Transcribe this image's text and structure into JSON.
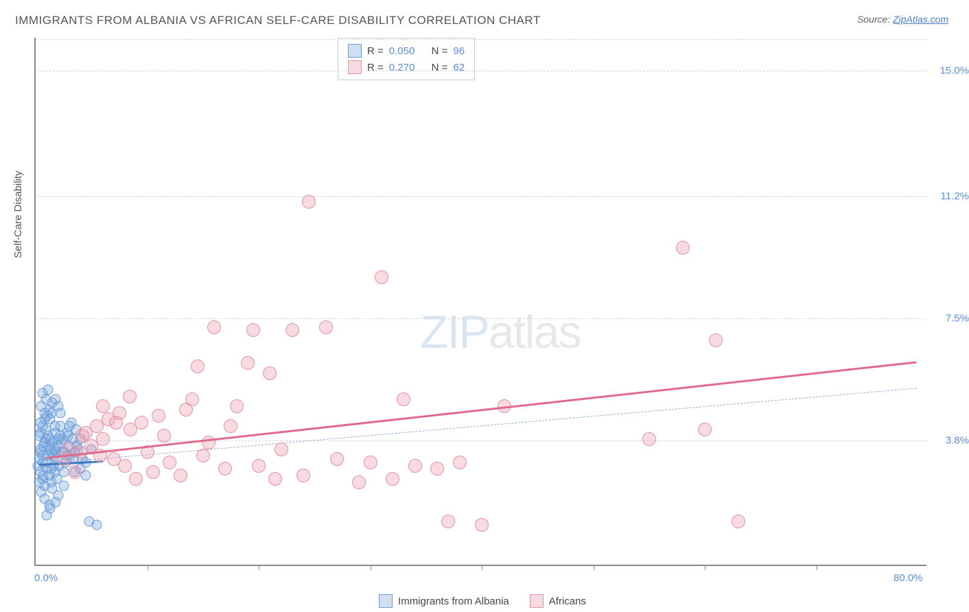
{
  "title": "IMMIGRANTS FROM ALBANIA VS AFRICAN SELF-CARE DISABILITY CORRELATION CHART",
  "source_label": "Source:",
  "source_name": "ZipAtlas.com",
  "ylabel": "Self-Care Disability",
  "watermark_a": "ZIP",
  "watermark_b": "atlas",
  "chart": {
    "type": "scatter",
    "xlim": [
      0,
      80
    ],
    "ylim": [
      0,
      16
    ],
    "background_color": "#ffffff",
    "grid_color": "#d8d8d8",
    "axis_color": "#888888",
    "tick_color": "#5b8dd6",
    "xticks": [
      {
        "pos": 0,
        "label": "0.0%"
      },
      {
        "pos": 80,
        "label": "80.0%"
      }
    ],
    "xtick_marks": [
      10,
      20,
      30,
      40,
      50,
      60,
      70
    ],
    "yticks": [
      {
        "pos": 3.8,
        "label": "3.8%"
      },
      {
        "pos": 7.5,
        "label": "7.5%"
      },
      {
        "pos": 11.2,
        "label": "11.2%"
      },
      {
        "pos": 15.0,
        "label": "15.0%"
      }
    ],
    "series": [
      {
        "id": "albania",
        "label": "Immigrants from Albania",
        "fill": "rgba(120,165,220,0.35)",
        "stroke": "#6a9ad8",
        "marker_size": 15,
        "R": "0.050",
        "N": "96",
        "trend": {
          "x1": 0.3,
          "y1": 3.1,
          "x2": 79,
          "y2": 5.4,
          "style": "dashed",
          "color": "#8db0dc"
        },
        "small_trend": {
          "x1": 0.3,
          "y1": 3.1,
          "x2": 6,
          "y2": 3.2,
          "style": "solid",
          "color": "#3d78c0"
        },
        "points": [
          [
            0.2,
            3.0
          ],
          [
            0.3,
            3.2
          ],
          [
            0.4,
            2.8
          ],
          [
            0.5,
            3.4
          ],
          [
            0.6,
            2.6
          ],
          [
            0.7,
            3.6
          ],
          [
            0.8,
            2.4
          ],
          [
            0.9,
            3.8
          ],
          [
            1.0,
            2.9
          ],
          [
            1.1,
            3.3
          ],
          [
            1.2,
            2.7
          ],
          [
            1.3,
            3.5
          ],
          [
            1.4,
            2.5
          ],
          [
            1.5,
            3.7
          ],
          [
            1.6,
            3.0
          ],
          [
            1.7,
            2.8
          ],
          [
            1.8,
            3.4
          ],
          [
            1.9,
            2.6
          ],
          [
            2.0,
            3.6
          ],
          [
            0.4,
            4.0
          ],
          [
            0.6,
            4.2
          ],
          [
            0.8,
            4.4
          ],
          [
            1.0,
            4.5
          ],
          [
            1.2,
            4.7
          ],
          [
            1.5,
            4.9
          ],
          [
            1.8,
            5.0
          ],
          [
            2.0,
            4.8
          ],
          [
            2.2,
            4.2
          ],
          [
            2.4,
            3.8
          ],
          [
            2.6,
            3.4
          ],
          [
            2.8,
            4.0
          ],
          [
            3.0,
            3.6
          ],
          [
            3.2,
            4.3
          ],
          [
            3.4,
            3.2
          ],
          [
            3.6,
            4.1
          ],
          [
            3.8,
            3.5
          ],
          [
            4.0,
            2.9
          ],
          [
            0.5,
            2.2
          ],
          [
            0.8,
            2.0
          ],
          [
            1.2,
            1.8
          ],
          [
            1.5,
            2.3
          ],
          [
            1.8,
            1.9
          ],
          [
            2.0,
            2.1
          ],
          [
            2.5,
            2.4
          ],
          [
            1.0,
            1.5
          ],
          [
            1.3,
            1.7
          ],
          [
            0.6,
            5.2
          ],
          [
            0.9,
            5.0
          ],
          [
            1.1,
            5.3
          ],
          [
            1.4,
            4.6
          ],
          [
            0.3,
            3.9
          ],
          [
            0.7,
            3.1
          ],
          [
            1.6,
            3.3
          ],
          [
            2.1,
            3.0
          ],
          [
            2.3,
            3.7
          ],
          [
            2.7,
            3.1
          ],
          [
            2.9,
            3.9
          ],
          [
            3.1,
            3.3
          ],
          [
            3.3,
            3.8
          ],
          [
            3.5,
            2.8
          ],
          [
            3.7,
            3.6
          ],
          [
            4.2,
            3.2
          ],
          [
            4.5,
            2.7
          ],
          [
            4.8,
            1.3
          ],
          [
            5.5,
            1.2
          ],
          [
            0.4,
            3.5
          ],
          [
            0.9,
            4.1
          ],
          [
            1.3,
            4.4
          ],
          [
            1.7,
            4.2
          ],
          [
            2.2,
            4.6
          ],
          [
            0.5,
            4.8
          ],
          [
            0.8,
            3.7
          ],
          [
            1.1,
            3.9
          ],
          [
            1.4,
            2.9
          ],
          [
            1.9,
            3.2
          ],
          [
            2.4,
            3.4
          ],
          [
            0.3,
            2.5
          ],
          [
            0.7,
            2.7
          ],
          [
            1.0,
            3.1
          ],
          [
            1.5,
            3.4
          ],
          [
            2.0,
            3.8
          ],
          [
            0.6,
            3.3
          ],
          [
            1.2,
            3.6
          ],
          [
            1.8,
            4.0
          ],
          [
            2.5,
            2.8
          ],
          [
            3.0,
            4.2
          ],
          [
            3.5,
            3.4
          ],
          [
            4.0,
            3.8
          ],
          [
            4.5,
            3.1
          ],
          [
            5.0,
            3.5
          ],
          [
            0.4,
            4.3
          ],
          [
            0.8,
            4.6
          ],
          [
            1.3,
            3.8
          ],
          [
            1.7,
            3.5
          ],
          [
            2.2,
            3.9
          ],
          [
            2.8,
            3.3
          ]
        ]
      },
      {
        "id": "africans",
        "label": "Africans",
        "fill": "rgba(235,150,170,0.35)",
        "stroke": "#e492a5",
        "marker_size": 20,
        "R": "0.270",
        "N": "62",
        "trend": {
          "x1": 1,
          "y1": 3.3,
          "x2": 79,
          "y2": 6.2,
          "style": "solid",
          "color": "#e06b8a"
        },
        "points": [
          [
            2.5,
            3.2
          ],
          [
            3.0,
            3.5
          ],
          [
            3.5,
            2.8
          ],
          [
            4.0,
            3.4
          ],
          [
            4.5,
            4.0
          ],
          [
            5.0,
            3.6
          ],
          [
            5.5,
            4.2
          ],
          [
            6.0,
            3.8
          ],
          [
            6.5,
            4.4
          ],
          [
            7.0,
            3.2
          ],
          [
            7.5,
            4.6
          ],
          [
            8.0,
            3.0
          ],
          [
            8.5,
            4.1
          ],
          [
            9.0,
            2.6
          ],
          [
            9.5,
            4.3
          ],
          [
            10.0,
            3.4
          ],
          [
            10.5,
            2.8
          ],
          [
            11.0,
            4.5
          ],
          [
            12.0,
            3.1
          ],
          [
            13.0,
            2.7
          ],
          [
            14.0,
            5.0
          ],
          [
            14.5,
            6.0
          ],
          [
            15.0,
            3.3
          ],
          [
            16.0,
            7.2
          ],
          [
            17.0,
            2.9
          ],
          [
            18.0,
            4.8
          ],
          [
            19.0,
            6.1
          ],
          [
            19.5,
            7.1
          ],
          [
            20.0,
            3.0
          ],
          [
            21.0,
            5.8
          ],
          [
            21.5,
            2.6
          ],
          [
            22.0,
            3.5
          ],
          [
            23.0,
            7.1
          ],
          [
            24.0,
            2.7
          ],
          [
            24.5,
            11.0
          ],
          [
            26.0,
            7.2
          ],
          [
            27.0,
            3.2
          ],
          [
            29.0,
            2.5
          ],
          [
            30.0,
            3.1
          ],
          [
            31.0,
            8.7
          ],
          [
            32.0,
            2.6
          ],
          [
            33.0,
            5.0
          ],
          [
            34.0,
            3.0
          ],
          [
            36.0,
            2.9
          ],
          [
            37.0,
            1.3
          ],
          [
            38.0,
            3.1
          ],
          [
            40.0,
            1.2
          ],
          [
            42.0,
            4.8
          ],
          [
            55.0,
            3.8
          ],
          [
            58.0,
            9.6
          ],
          [
            60.0,
            4.1
          ],
          [
            61.0,
            6.8
          ],
          [
            63.0,
            1.3
          ],
          [
            6.0,
            4.8
          ],
          [
            7.2,
            4.3
          ],
          [
            8.4,
            5.1
          ],
          [
            11.5,
            3.9
          ],
          [
            13.5,
            4.7
          ],
          [
            15.5,
            3.7
          ],
          [
            17.5,
            4.2
          ],
          [
            4.2,
            3.9
          ],
          [
            5.8,
            3.3
          ]
        ]
      }
    ]
  },
  "legend_labels": {
    "R": "R =",
    "N": "N ="
  }
}
